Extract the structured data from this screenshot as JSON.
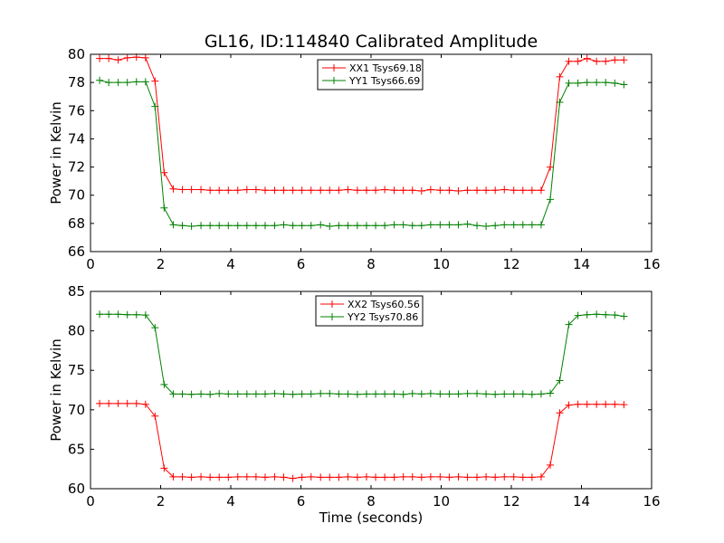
{
  "chart_data": [
    {
      "type": "line",
      "title": "GL16, ID:114840 Calibrated Amplitude",
      "xlabel": "",
      "ylabel": "Power in Kelvin",
      "xlim": [
        0,
        16
      ],
      "ylim": [
        66,
        80
      ],
      "x_ticks": [
        "0",
        "2",
        "4",
        "6",
        "8",
        "10",
        "12",
        "14",
        "16"
      ],
      "y_ticks": [
        "66",
        "68",
        "70",
        "72",
        "74",
        "76",
        "78",
        "80"
      ],
      "grid": false,
      "legend_position": "top-center",
      "x": [
        0.26,
        0.52,
        0.79,
        1.05,
        1.31,
        1.57,
        1.84,
        2.1,
        2.36,
        2.62,
        2.88,
        3.15,
        3.41,
        3.67,
        3.93,
        4.2,
        4.46,
        4.72,
        4.98,
        5.25,
        5.51,
        5.77,
        6.03,
        6.29,
        6.56,
        6.82,
        7.08,
        7.34,
        7.61,
        7.87,
        8.13,
        8.39,
        8.66,
        8.92,
        9.18,
        9.44,
        9.7,
        9.97,
        10.23,
        10.49,
        10.75,
        11.02,
        11.28,
        11.54,
        11.8,
        12.07,
        12.33,
        12.59,
        12.85,
        13.11,
        13.38,
        13.64,
        13.9,
        14.16,
        14.43,
        14.69,
        14.95,
        15.21
      ],
      "series": [
        {
          "name": "XX1 Tsys69.18",
          "color": "#ff0000",
          "values": [
            79.7,
            79.7,
            79.6,
            79.75,
            79.8,
            79.75,
            78.1,
            71.6,
            70.45,
            70.4,
            70.4,
            70.4,
            70.35,
            70.35,
            70.35,
            70.35,
            70.4,
            70.4,
            70.35,
            70.35,
            70.35,
            70.35,
            70.35,
            70.35,
            70.35,
            70.35,
            70.35,
            70.4,
            70.35,
            70.35,
            70.35,
            70.4,
            70.35,
            70.35,
            70.35,
            70.3,
            70.4,
            70.35,
            70.35,
            70.3,
            70.35,
            70.35,
            70.35,
            70.35,
            70.4,
            70.35,
            70.35,
            70.35,
            70.35,
            72.0,
            78.4,
            79.5,
            79.5,
            79.7,
            79.5,
            79.5,
            79.6,
            79.6
          ]
        },
        {
          "name": "YY1 Tsys66.69",
          "color": "#008000",
          "values": [
            78.15,
            78.0,
            78.0,
            78.0,
            78.05,
            78.05,
            76.3,
            69.1,
            67.9,
            67.85,
            67.8,
            67.85,
            67.85,
            67.85,
            67.85,
            67.85,
            67.85,
            67.85,
            67.85,
            67.85,
            67.9,
            67.85,
            67.85,
            67.85,
            67.9,
            67.8,
            67.85,
            67.85,
            67.85,
            67.85,
            67.85,
            67.85,
            67.9,
            67.9,
            67.85,
            67.85,
            67.9,
            67.9,
            67.9,
            67.9,
            67.95,
            67.85,
            67.8,
            67.85,
            67.9,
            67.9,
            67.9,
            67.9,
            67.9,
            69.7,
            76.6,
            77.95,
            77.95,
            78.0,
            78.0,
            78.0,
            77.95,
            77.85
          ]
        }
      ]
    },
    {
      "type": "line",
      "title": "",
      "xlabel": "Time (seconds)",
      "ylabel": "Power in Kelvin",
      "xlim": [
        0,
        16
      ],
      "ylim": [
        60,
        85
      ],
      "x_ticks": [
        "0",
        "2",
        "4",
        "6",
        "8",
        "10",
        "12",
        "14",
        "16"
      ],
      "y_ticks": [
        "60",
        "65",
        "70",
        "75",
        "80",
        "85"
      ],
      "grid": false,
      "legend_position": "top-center",
      "x": [
        0.26,
        0.52,
        0.79,
        1.05,
        1.31,
        1.57,
        1.84,
        2.1,
        2.36,
        2.62,
        2.88,
        3.15,
        3.41,
        3.67,
        3.93,
        4.2,
        4.46,
        4.72,
        4.98,
        5.25,
        5.51,
        5.77,
        6.03,
        6.29,
        6.56,
        6.82,
        7.08,
        7.34,
        7.61,
        7.87,
        8.13,
        8.39,
        8.66,
        8.92,
        9.18,
        9.44,
        9.7,
        9.97,
        10.23,
        10.49,
        10.75,
        11.02,
        11.28,
        11.54,
        11.8,
        12.07,
        12.33,
        12.59,
        12.85,
        13.11,
        13.38,
        13.64,
        13.9,
        14.16,
        14.43,
        14.69,
        14.95,
        15.21
      ],
      "series": [
        {
          "name": "XX2 Tsys60.56",
          "color": "#ff0000",
          "values": [
            70.8,
            70.8,
            70.8,
            70.8,
            70.8,
            70.7,
            69.2,
            62.6,
            61.5,
            61.5,
            61.45,
            61.5,
            61.45,
            61.45,
            61.45,
            61.5,
            61.5,
            61.5,
            61.45,
            61.5,
            61.45,
            61.3,
            61.45,
            61.5,
            61.45,
            61.45,
            61.45,
            61.5,
            61.45,
            61.5,
            61.45,
            61.45,
            61.45,
            61.5,
            61.5,
            61.45,
            61.5,
            61.5,
            61.45,
            61.5,
            61.45,
            61.45,
            61.5,
            61.45,
            61.5,
            61.5,
            61.45,
            61.45,
            61.5,
            63.0,
            69.6,
            70.6,
            70.7,
            70.7,
            70.7,
            70.7,
            70.7,
            70.65
          ]
        },
        {
          "name": "YY2 Tsys70.86",
          "color": "#008000",
          "values": [
            82.1,
            82.1,
            82.1,
            82.05,
            82.05,
            82.0,
            80.4,
            73.2,
            72.0,
            72.0,
            71.95,
            72.0,
            71.95,
            72.05,
            72.0,
            72.0,
            72.0,
            72.0,
            72.0,
            72.05,
            72.0,
            71.95,
            72.0,
            72.0,
            72.05,
            72.05,
            72.0,
            72.0,
            71.95,
            72.0,
            72.0,
            72.0,
            72.0,
            71.95,
            72.05,
            72.0,
            72.05,
            72.0,
            72.0,
            72.0,
            72.05,
            72.05,
            72.0,
            71.95,
            72.0,
            72.0,
            72.0,
            71.95,
            72.0,
            72.1,
            73.7,
            80.8,
            81.95,
            82.05,
            82.1,
            82.05,
            82.0,
            81.85
          ]
        }
      ]
    }
  ]
}
